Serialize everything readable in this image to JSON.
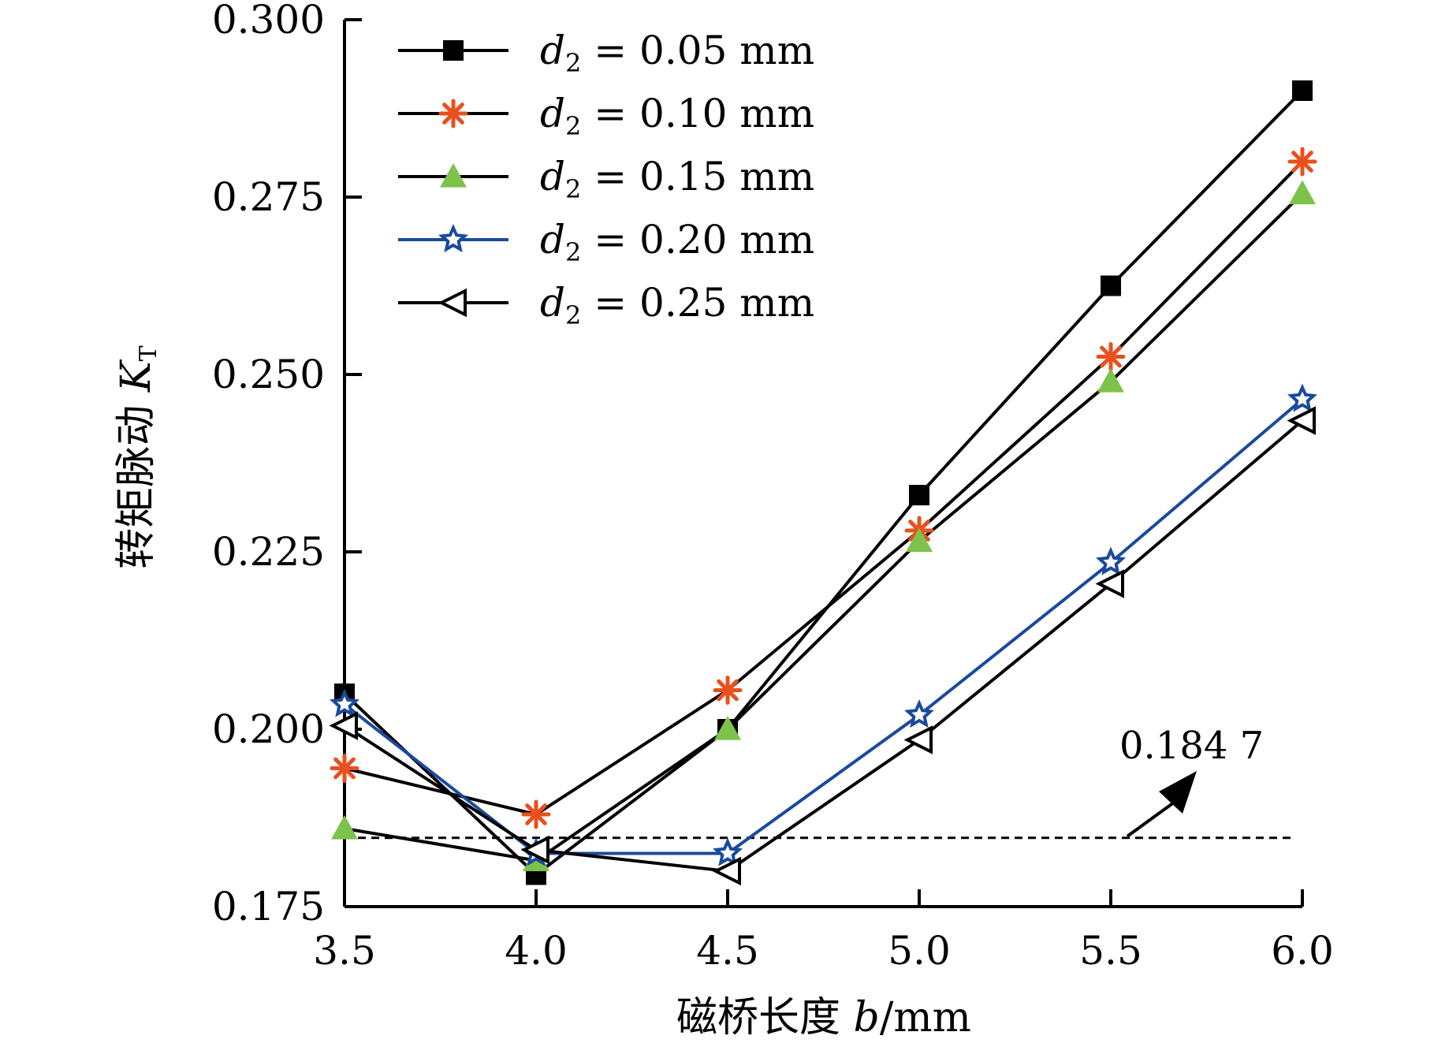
{
  "chart_data": {
    "type": "line",
    "xlabel_text": "磁桥长度 ",
    "xlabel_var": "b",
    "xlabel_unit": "/mm",
    "ylabel_text": "转矩脉动 ",
    "ylabel_var": "K",
    "ylabel_sub": "T",
    "x": [
      3.5,
      4.0,
      4.5,
      5.0,
      5.5,
      6.0
    ],
    "x_tick_labels": [
      "3.5",
      "4.0",
      "4.5",
      "5.0",
      "5.5",
      "6.0"
    ],
    "y_tick_values": [
      0.175,
      0.2,
      0.225,
      0.25,
      0.275,
      0.3
    ],
    "y_tick_labels": [
      "0.175",
      "0.200",
      "0.225",
      "0.250",
      "0.275",
      "0.300"
    ],
    "xlim": [
      3.5,
      6.0
    ],
    "ylim": [
      0.175,
      0.3
    ],
    "grid": false,
    "legend_position": "top-left",
    "series": [
      {
        "var": "d",
        "sub": "2",
        "value_text": " = 0.05 mm",
        "marker": "square",
        "line_color": "#000000",
        "marker_color": "#000000",
        "values": [
          0.205,
          0.1795,
          0.2,
          0.233,
          0.2625,
          0.29
        ]
      },
      {
        "var": "d",
        "sub": "2",
        "value_text": " = 0.10 mm",
        "marker": "asterisk",
        "line_color": "#000000",
        "marker_color": "#e8501e",
        "values": [
          0.1945,
          0.188,
          0.2055,
          0.228,
          0.2525,
          0.28
        ]
      },
      {
        "var": "d",
        "sub": "2",
        "value_text": " = 0.15 mm",
        "marker": "triangle-up",
        "line_color": "#000000",
        "marker_color": "#7dc24b",
        "values": [
          0.186,
          0.1815,
          0.2,
          0.2265,
          0.249,
          0.2755
        ]
      },
      {
        "var": "d",
        "sub": "2",
        "value_text": " = 0.20 mm",
        "marker": "star",
        "line_color": "#1a4a9c",
        "marker_color": "#1a4a9c",
        "values": [
          0.2035,
          0.1825,
          0.1825,
          0.202,
          0.2235,
          0.2465
        ]
      },
      {
        "var": "d",
        "sub": "2",
        "value_text": " = 0.25 mm",
        "marker": "triangle-left",
        "line_color": "#000000",
        "marker_color": "#000000",
        "values": [
          0.2005,
          0.183,
          0.18,
          0.1985,
          0.2205,
          0.2435
        ]
      }
    ],
    "reference_line": {
      "value": 0.1847,
      "label": "0.184 7",
      "style": "dashed"
    }
  }
}
